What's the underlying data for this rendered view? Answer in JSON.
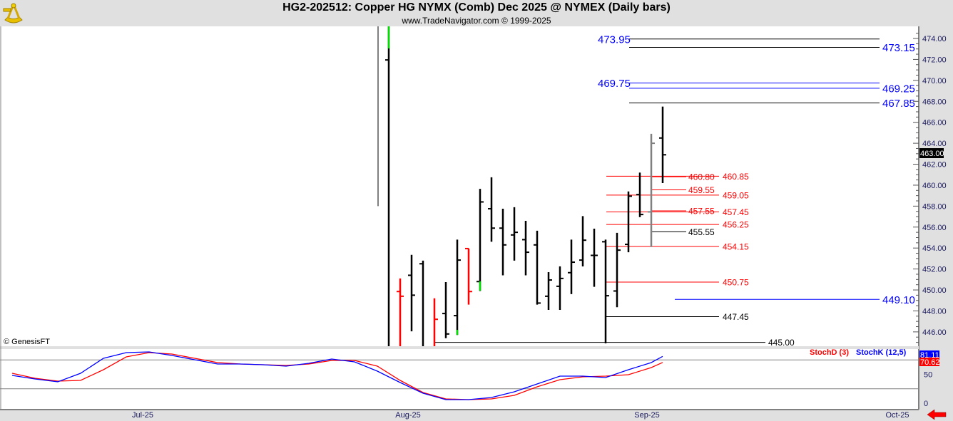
{
  "header": {
    "title": "HG2-202512:  Copper HG NYMX (Comb) Dec 2025 @ NYMEX  (Daily bars)",
    "subtitle": "www.TradeNavigator.com © 1999-2025",
    "logo_icon": "sextant-icon"
  },
  "copyright": "© GenesisFT",
  "last_price_label": "463.00",
  "scroll_arrow_icon": "red-left-arrow-icon",
  "colors": {
    "up_bar": "#000000",
    "down_bar": "#ff0000",
    "gray_bar": "#808080",
    "stoch_k": "#0000ff",
    "stoch_d": "#ff0000",
    "level_blue": "#0000ff",
    "level_red": "#ff0000"
  },
  "chart_data": [
    {
      "type": "ohlc",
      "ylim": [
        444.8,
        475.2
      ],
      "y_ticks": [
        "446.00",
        "448.00",
        "450.00",
        "452.00",
        "454.00",
        "456.00",
        "458.00",
        "460.00",
        "462.00",
        "464.00",
        "466.00",
        "468.00",
        "470.00",
        "472.00",
        "474.00"
      ],
      "x_ticks": [
        "Jul-25",
        "Aug-25",
        "Sep-25",
        "Oct-25"
      ],
      "bars": [
        {
          "o": null,
          "h": 476,
          "l": 458.0,
          "c": null,
          "color": "gray"
        },
        {
          "o": 471.95,
          "h": 476,
          "l": 444,
          "c": null,
          "color": "black"
        },
        {
          "o": 449.85,
          "h": 451.1,
          "l": 444,
          "c": 449.4,
          "color": "red"
        },
        {
          "o": 451.4,
          "h": 453.35,
          "l": 446.05,
          "c": 449.5,
          "color": "black"
        },
        {
          "o": 452.5,
          "h": 452.8,
          "l": 444,
          "c": null,
          "color": "black"
        },
        {
          "o": null,
          "h": 449.2,
          "l": 444,
          "c": 447.2,
          "color": "red"
        },
        {
          "o": 447.75,
          "h": 450.75,
          "l": 445.4,
          "c": 445.8,
          "color": "black"
        },
        {
          "o": 447.55,
          "h": 454.8,
          "l": 445.7,
          "c": 452.85,
          "color": "black"
        },
        {
          "o": 453.95,
          "h": 453.95,
          "l": 448.6,
          "c": 449.85,
          "color": "red"
        },
        {
          "o": 450.8,
          "h": 459.65,
          "l": 449.9,
          "c": 458.4,
          "color": "black"
        },
        {
          "o": 457.75,
          "h": 460.75,
          "l": 454.6,
          "c": 455.9,
          "color": "black"
        },
        {
          "o": 455.9,
          "h": 457.75,
          "l": 451.4,
          "c": 454.3,
          "color": "black"
        },
        {
          "o": 455.25,
          "h": 457.9,
          "l": 452.8,
          "c": 455.5,
          "color": "black"
        },
        {
          "o": 454.8,
          "h": 456.6,
          "l": 451.4,
          "c": 453.6,
          "color": "black"
        },
        {
          "o": 454.3,
          "h": 455.65,
          "l": 448.6,
          "c": 448.75,
          "color": "black"
        },
        {
          "o": 449.4,
          "h": 451.7,
          "l": 448.1,
          "c": 450.95,
          "color": "black"
        },
        {
          "o": 450.35,
          "h": 452.25,
          "l": 448.1,
          "c": 451.1,
          "color": "black"
        },
        {
          "o": 451.65,
          "h": 454.8,
          "l": 449.6,
          "c": 452.65,
          "color": "black"
        },
        {
          "o": 452.85,
          "h": 457.05,
          "l": 452.25,
          "c": 454.75,
          "color": "black"
        },
        {
          "o": 453.3,
          "h": 455.85,
          "l": 450.3,
          "c": 453.3,
          "color": "black"
        },
        {
          "o": 454.6,
          "h": 454.8,
          "l": 444.9,
          "c": 449.45,
          "color": "black"
        },
        {
          "o": 449.9,
          "h": 455.45,
          "l": 448.35,
          "c": 453.8,
          "color": "black"
        },
        {
          "o": 454.35,
          "h": 459.4,
          "l": 453.6,
          "c": 458.95,
          "color": "black"
        },
        {
          "o": 459.1,
          "h": 461.2,
          "l": 456.95,
          "c": 457.2,
          "color": "black"
        },
        {
          "o": 457.45,
          "h": 464.9,
          "l": 454.1,
          "c": 464.0,
          "color": "gray"
        },
        {
          "o": 464.5,
          "h": 467.5,
          "l": 460.2,
          "c": 462.9,
          "color": "black"
        }
      ],
      "levels": [
        {
          "label": "473.95",
          "price": 473.95,
          "line": "black",
          "text": "blue",
          "side": "left"
        },
        {
          "label": "473.15",
          "price": 473.15,
          "line": "black",
          "text": "blue",
          "side": "right"
        },
        {
          "label": "469.75",
          "price": 469.75,
          "line": "blue",
          "text": "blue",
          "side": "left"
        },
        {
          "label": "469.25",
          "price": 469.25,
          "line": "blue",
          "text": "blue",
          "side": "right"
        },
        {
          "label": "467.85",
          "price": 467.85,
          "line": "black",
          "text": "blue",
          "side": "right"
        },
        {
          "label": "460.80",
          "price": 460.8,
          "line": "red",
          "text": "red",
          "side": "inner"
        },
        {
          "label": "460.85",
          "price": 460.85,
          "line": "red",
          "text": "red",
          "side": "outer"
        },
        {
          "label": "459.55",
          "price": 459.55,
          "line": "red",
          "text": "red",
          "side": "inner"
        },
        {
          "label": "459.05",
          "price": 459.05,
          "line": "red",
          "text": "red",
          "side": "outer"
        },
        {
          "label": "457.55",
          "price": 457.55,
          "line": "red",
          "text": "red",
          "side": "inner"
        },
        {
          "label": "457.45",
          "price": 457.45,
          "line": "red",
          "text": "red",
          "side": "outer"
        },
        {
          "label": "456.25",
          "price": 456.25,
          "line": "red",
          "text": "red",
          "side": "outer"
        },
        {
          "label": "455.55",
          "price": 455.55,
          "line": "black",
          "text": "black",
          "side": "inner"
        },
        {
          "label": "454.15",
          "price": 454.15,
          "line": "red",
          "text": "red",
          "side": "outer"
        },
        {
          "label": "450.75",
          "price": 450.75,
          "line": "red",
          "text": "red",
          "side": "outer"
        },
        {
          "label": "449.10",
          "price": 449.1,
          "line": "blue",
          "text": "blue",
          "side": "right"
        },
        {
          "label": "447.45",
          "price": 447.45,
          "line": "black",
          "text": "black",
          "side": "outer"
        },
        {
          "label": "445.00",
          "price": 445.0,
          "line": "black",
          "text": "black",
          "side": "long"
        }
      ]
    },
    {
      "type": "line",
      "ylim": [
        0,
        100
      ],
      "y_ticks": [
        "50",
        "0"
      ],
      "guide_lines": [
        75,
        25
      ],
      "series": [
        {
          "name": "StochK (12,5)",
          "color": "#0000ff",
          "last_label": "81.11",
          "values": [
            48.1,
            42,
            37,
            51.9,
            77.8,
            87.7,
            88.9,
            82.7,
            75.3,
            67.9,
            67.9,
            66.7,
            64.2,
            69.1,
            76.5,
            71.6,
            55.6,
            35.8,
            17.3,
            6.2,
            6.2,
            9.9,
            19.8,
            33.3,
            46.9,
            46.9,
            44.4,
            58,
            70.4,
            81.11
          ]
        },
        {
          "name": "StochD (3)",
          "color": "#ff0000",
          "last_label": "70.62",
          "values": [
            51.9,
            43.2,
            38.3,
            39.5,
            58,
            80.2,
            87.7,
            85.2,
            77.8,
            70.4,
            67.9,
            66.7,
            65.4,
            67.9,
            74.1,
            74.1,
            64.2,
            39.5,
            18.5,
            7.4,
            6.2,
            7.4,
            13.6,
            28.4,
            40.7,
            45.7,
            46.9,
            49.4,
            61.7,
            70.62
          ]
        }
      ]
    }
  ]
}
